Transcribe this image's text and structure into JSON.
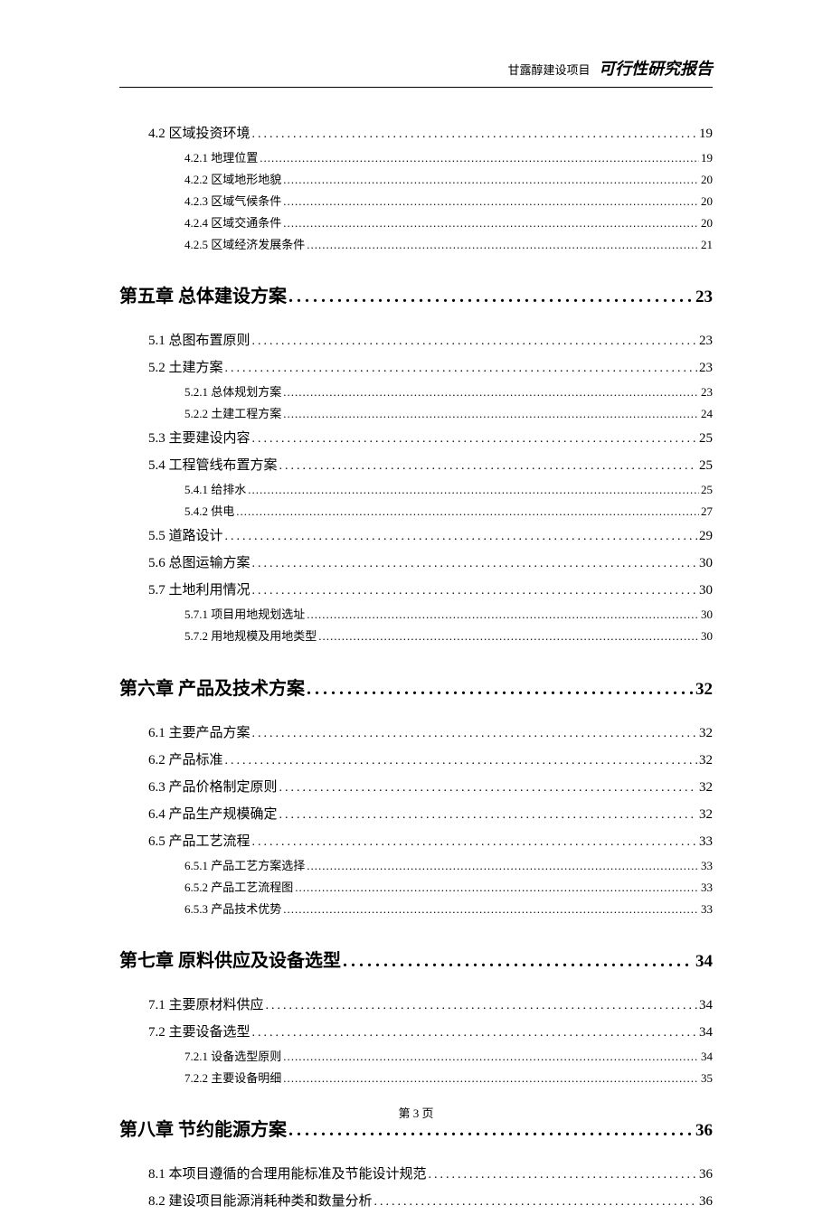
{
  "header": {
    "project": "甘露醇建设项目",
    "title": "可行性研究报告"
  },
  "footer": {
    "text": "第 3 页"
  },
  "blocks": [
    {
      "entries": [
        {
          "level": "section",
          "label": "4.2 区域投资环境",
          "page": "19"
        },
        {
          "level": "sub",
          "label": "4.2.1 地理位置",
          "page": "19"
        },
        {
          "level": "sub",
          "label": "4.2.2 区域地形地貌",
          "page": "20"
        },
        {
          "level": "sub",
          "label": "4.2.3 区域气候条件",
          "page": "20"
        },
        {
          "level": "sub",
          "label": "4.2.4 区域交通条件",
          "page": "20"
        },
        {
          "level": "sub",
          "label": "4.2.5 区域经济发展条件",
          "page": "21"
        }
      ]
    },
    {
      "chapter": {
        "label": "第五章  总体建设方案",
        "page": "23"
      },
      "entries": [
        {
          "level": "section",
          "label": "5.1 总图布置原则",
          "page": "23"
        },
        {
          "level": "section",
          "label": "5.2 土建方案",
          "page": "23"
        },
        {
          "level": "sub",
          "label": "5.2.1 总体规划方案",
          "page": "23"
        },
        {
          "level": "sub",
          "label": "5.2.2 土建工程方案",
          "page": "24"
        },
        {
          "level": "section",
          "label": "5.3 主要建设内容",
          "page": "25"
        },
        {
          "level": "section",
          "label": "5.4 工程管线布置方案",
          "page": "25"
        },
        {
          "level": "sub",
          "label": "5.4.1 给排水",
          "page": "25"
        },
        {
          "level": "sub",
          "label": "5.4.2 供电",
          "page": "27"
        },
        {
          "level": "section",
          "label": "5.5 道路设计",
          "page": "29"
        },
        {
          "level": "section",
          "label": "5.6 总图运输方案",
          "page": "30"
        },
        {
          "level": "section",
          "label": "5.7 土地利用情况",
          "page": "30"
        },
        {
          "level": "sub",
          "label": "5.7.1 项目用地规划选址",
          "page": "30"
        },
        {
          "level": "sub",
          "label": "5.7.2 用地规模及用地类型",
          "page": "30"
        }
      ]
    },
    {
      "chapter": {
        "label": "第六章  产品及技术方案",
        "page": "32"
      },
      "entries": [
        {
          "level": "section",
          "label": "6.1 主要产品方案",
          "page": "32"
        },
        {
          "level": "section",
          "label": "6.2 产品标准",
          "page": "32"
        },
        {
          "level": "section",
          "label": "6.3 产品价格制定原则",
          "page": "32"
        },
        {
          "level": "section",
          "label": "6.4 产品生产规模确定",
          "page": "32"
        },
        {
          "level": "section",
          "label": "6.5 产品工艺流程",
          "page": "33"
        },
        {
          "level": "sub",
          "label": "6.5.1 产品工艺方案选择",
          "page": "33"
        },
        {
          "level": "sub",
          "label": "6.5.2 产品工艺流程图",
          "page": "33"
        },
        {
          "level": "sub",
          "label": "6.5.3 产品技术优势",
          "page": "33"
        }
      ]
    },
    {
      "chapter": {
        "label": "第七章  原料供应及设备选型",
        "page": "34"
      },
      "entries": [
        {
          "level": "section",
          "label": "7.1 主要原材料供应",
          "page": "34"
        },
        {
          "level": "section",
          "label": "7.2 主要设备选型",
          "page": "34"
        },
        {
          "level": "sub",
          "label": "7.2.1 设备选型原则",
          "page": "34"
        },
        {
          "level": "sub",
          "label": "7.2.2 主要设备明细",
          "page": "35"
        }
      ]
    },
    {
      "chapter": {
        "label": "第八章  节约能源方案",
        "page": "36"
      },
      "entries": [
        {
          "level": "section",
          "label": "8.1 本项目遵循的合理用能标准及节能设计规范",
          "page": "36"
        },
        {
          "level": "section",
          "label": "8.2 建设项目能源消耗种类和数量分析",
          "page": "36"
        }
      ]
    }
  ]
}
